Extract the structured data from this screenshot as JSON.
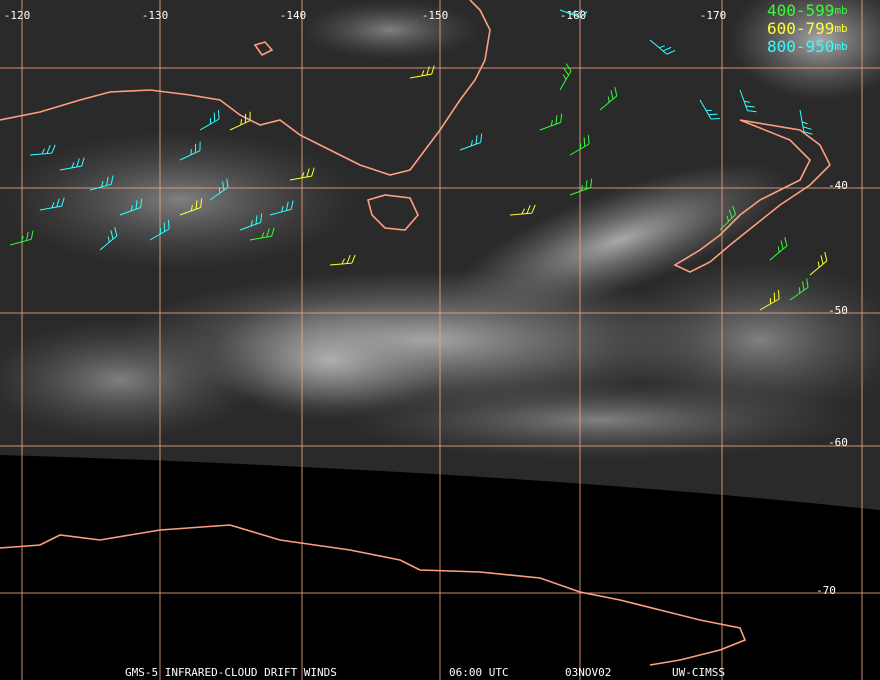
{
  "map": {
    "longitude_labels": [
      "-120",
      "-130",
      "-140",
      "-150",
      "-160",
      "-170"
    ],
    "latitude_labels": [
      "-40",
      "-50",
      "-60",
      "-70"
    ],
    "legend": [
      {
        "range": "400-599",
        "unit": "mb",
        "color": "#33ff33"
      },
      {
        "range": "600-799",
        "unit": "mb",
        "color": "#ffff33"
      },
      {
        "range": "800-950",
        "unit": "mb",
        "color": "#33ffff"
      }
    ],
    "footer": {
      "product": "GMS-5 INFRARED-CLOUD DRIFT WINDS",
      "time": "06:00 UTC",
      "date": "03NOV02",
      "source": "UW-CIMSS"
    }
  }
}
